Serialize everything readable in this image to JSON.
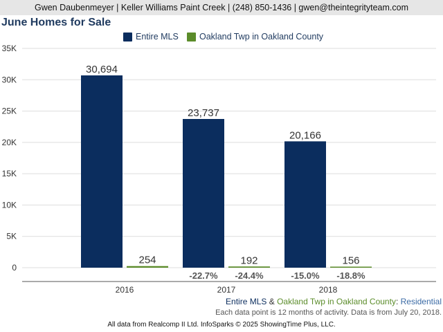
{
  "header": {
    "agent_info": "Gwen Daubenmeyer | Keller Williams Paint Creek | (248) 850-1436 | gwen@theintegrityteam.com"
  },
  "chart_data": {
    "type": "bar",
    "title": "June Homes for Sale",
    "categories": [
      "2016",
      "2017",
      "2018"
    ],
    "series": [
      {
        "name": "Entire MLS",
        "color": "#0b2d5e",
        "values": [
          30694,
          23737,
          20166
        ],
        "labels": [
          "30,694",
          "23,737",
          "20,166"
        ],
        "changes": [
          "",
          "-22.7%",
          "-15.0%"
        ]
      },
      {
        "name": "Oakland Twp in Oakland County",
        "color": "#5b8c2a",
        "values": [
          254,
          192,
          156
        ],
        "labels": [
          "254",
          "192",
          "156"
        ],
        "changes": [
          "",
          "-24.4%",
          "-18.8%"
        ]
      }
    ],
    "ylim": [
      0,
      35000
    ],
    "yticks": [
      0,
      5000,
      10000,
      15000,
      20000,
      25000,
      30000,
      35000
    ],
    "ytick_labels": [
      "0",
      "5K",
      "10K",
      "15K",
      "20K",
      "25K",
      "30K",
      "35K"
    ],
    "grid": true,
    "legend": "top"
  },
  "footer": {
    "series_a": "Entire MLS",
    "amp": " & ",
    "series_b": "Oakland Twp in Oakland County",
    "colon": ": ",
    "property_type": "Residential",
    "note": "Each data point is 12 months of activity. Data is from July 20, 2018.",
    "source": "All data from Realcomp II Ltd. InfoSparks © 2025 ShowingTime Plus, LLC."
  },
  "colors": {
    "title": "#1f3a5f",
    "axis_text": "#333333",
    "grid": "#dddddd",
    "change_text": "#555555"
  }
}
